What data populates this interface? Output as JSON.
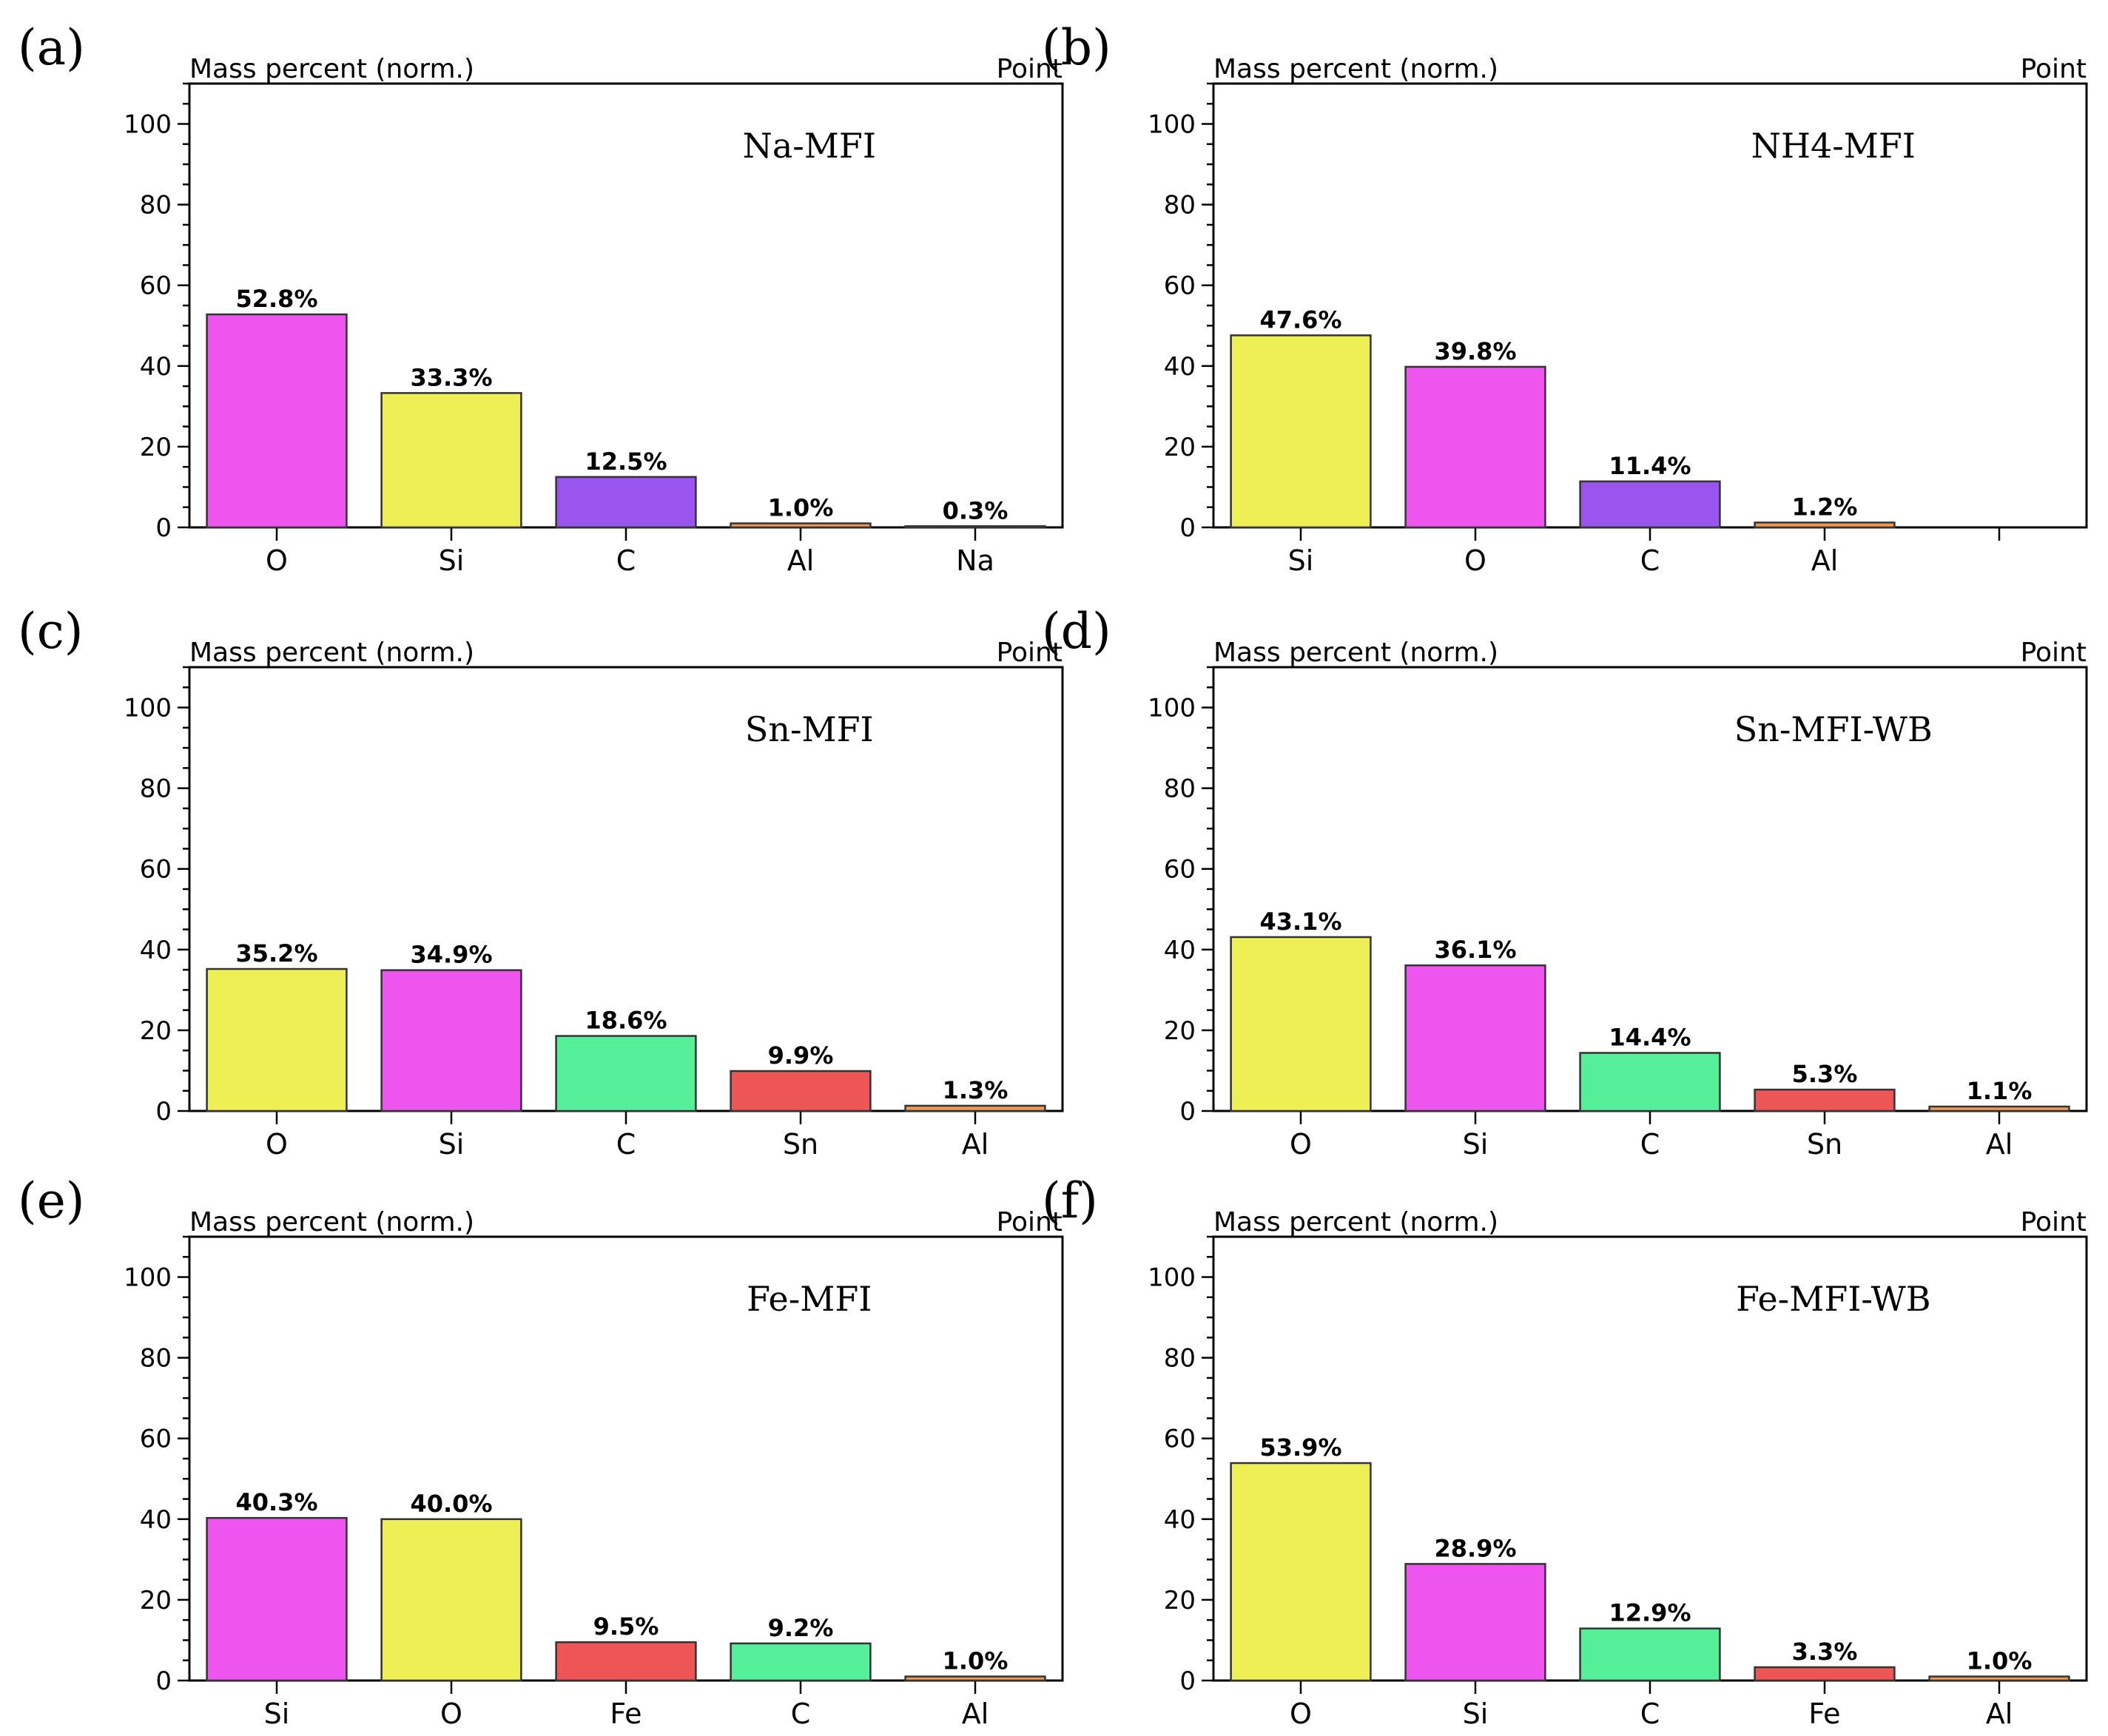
{
  "colors": {
    "O": "#ee55ee",
    "Si": "#eeee55",
    "C_violet": "#9955ee",
    "C_green": "#55ee99",
    "Al": "#ee9955",
    "Na": "#ee9955",
    "Sn": "#ee5555",
    "Fe": "#ee5555"
  },
  "chart_data": [
    {
      "type": "bar",
      "panel": "(a)",
      "title": "Na-MFI",
      "ylabel": "Mass percent (norm.)",
      "corner_label": "Point",
      "ylim": [
        0,
        110
      ],
      "yticks": [
        0,
        20,
        40,
        60,
        80,
        100
      ],
      "categories": [
        "O",
        "Si",
        "C",
        "Al",
        "Na"
      ],
      "values": [
        52.8,
        33.3,
        12.5,
        1.0,
        0.3
      ],
      "labels": [
        "52.8%",
        "33.3%",
        "12.5%",
        "1.0%",
        "0.3%"
      ],
      "bar_colors": [
        "#ee55ee",
        "#eeee55",
        "#9955ee",
        "#ee9955",
        "#ee9955"
      ],
      "slots": 5
    },
    {
      "type": "bar",
      "panel": "(b)",
      "title": "NH4-MFI",
      "ylabel": "Mass percent (norm.)",
      "corner_label": "Point",
      "ylim": [
        0,
        110
      ],
      "yticks": [
        0,
        20,
        40,
        60,
        80,
        100
      ],
      "categories": [
        "Si",
        "O",
        "C",
        "Al"
      ],
      "values": [
        47.6,
        39.8,
        11.4,
        1.2
      ],
      "labels": [
        "47.6%",
        "39.8%",
        "11.4%",
        "1.2%"
      ],
      "bar_colors": [
        "#eeee55",
        "#ee55ee",
        "#9955ee",
        "#ee9955"
      ],
      "slots": 5
    },
    {
      "type": "bar",
      "panel": "(c)",
      "title": "Sn-MFI",
      "ylabel": "Mass percent (norm.)",
      "corner_label": "Point",
      "ylim": [
        0,
        110
      ],
      "yticks": [
        0,
        20,
        40,
        60,
        80,
        100
      ],
      "categories": [
        "O",
        "Si",
        "C",
        "Sn",
        "Al"
      ],
      "values": [
        35.2,
        34.9,
        18.6,
        9.9,
        1.3
      ],
      "labels": [
        "35.2%",
        "34.9%",
        "18.6%",
        "9.9%",
        "1.3%"
      ],
      "bar_colors": [
        "#eeee55",
        "#ee55ee",
        "#55ee99",
        "#ee5555",
        "#ee9955"
      ],
      "slots": 5
    },
    {
      "type": "bar",
      "panel": "(d)",
      "title": "Sn-MFI-WB",
      "ylabel": "Mass percent (norm.)",
      "corner_label": "Point",
      "ylim": [
        0,
        110
      ],
      "yticks": [
        0,
        20,
        40,
        60,
        80,
        100
      ],
      "categories": [
        "O",
        "Si",
        "C",
        "Sn",
        "Al"
      ],
      "values": [
        43.1,
        36.1,
        14.4,
        5.3,
        1.1
      ],
      "labels": [
        "43.1%",
        "36.1%",
        "14.4%",
        "5.3%",
        "1.1%"
      ],
      "bar_colors": [
        "#eeee55",
        "#ee55ee",
        "#55ee99",
        "#ee5555",
        "#ee9955"
      ],
      "slots": 5
    },
    {
      "type": "bar",
      "panel": "(e)",
      "title": "Fe-MFI",
      "ylabel": "Mass percent (norm.)",
      "corner_label": "Point",
      "ylim": [
        0,
        110
      ],
      "yticks": [
        0,
        20,
        40,
        60,
        80,
        100
      ],
      "categories": [
        "Si",
        "O",
        "Fe",
        "C",
        "Al"
      ],
      "values": [
        40.3,
        40.0,
        9.5,
        9.2,
        1.0
      ],
      "labels": [
        "40.3%",
        "40.0%",
        "9.5%",
        "9.2%",
        "1.0%"
      ],
      "bar_colors": [
        "#ee55ee",
        "#eeee55",
        "#ee5555",
        "#55ee99",
        "#ee9955"
      ],
      "slots": 5
    },
    {
      "type": "bar",
      "panel": "(f)",
      "title": "Fe-MFI-WB",
      "ylabel": "Mass percent (norm.)",
      "corner_label": "Point",
      "ylim": [
        0,
        110
      ],
      "yticks": [
        0,
        20,
        40,
        60,
        80,
        100
      ],
      "categories": [
        "O",
        "Si",
        "C",
        "Fe",
        "Al"
      ],
      "values": [
        53.9,
        28.9,
        12.9,
        3.3,
        1.0
      ],
      "labels": [
        "53.9%",
        "28.9%",
        "12.9%",
        "3.3%",
        "1.0%"
      ],
      "bar_colors": [
        "#eeee55",
        "#ee55ee",
        "#55ee99",
        "#ee5555",
        "#ee9955"
      ],
      "slots": 5
    }
  ]
}
